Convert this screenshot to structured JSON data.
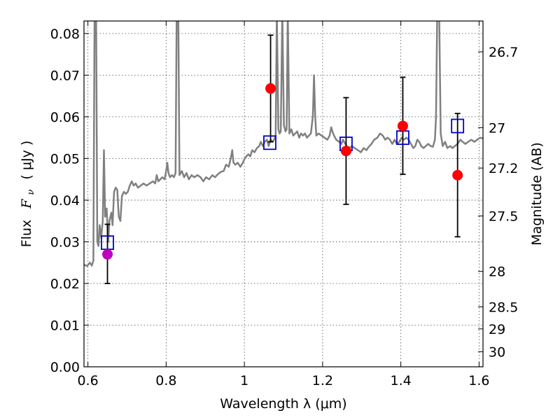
{
  "chart_data": {
    "type": "scatter",
    "xlabel": "Wavelength  λ (μm)",
    "ylabel_left_text": "Flux",
    "ylabel_left_math": "F",
    "ylabel_left_sub": "ν",
    "ylabel_left_unit": "( μJy )",
    "ylabel_right": "Magnitude (AB)",
    "xlim": [
      0.59,
      1.61
    ],
    "ylim": [
      0.0,
      0.083
    ],
    "grid": true,
    "x_ticks": [
      {
        "value": 0.6,
        "label": "0.6"
      },
      {
        "value": 0.8,
        "label": "0.8"
      },
      {
        "value": 1.0,
        "label": "1"
      },
      {
        "value": 1.2,
        "label": "1.2"
      },
      {
        "value": 1.4,
        "label": "1.4"
      },
      {
        "value": 1.6,
        "label": "1.6"
      }
    ],
    "y_ticks": [
      {
        "value": 0.0,
        "label": "0.00"
      },
      {
        "value": 0.01,
        "label": "0.01"
      },
      {
        "value": 0.02,
        "label": "0.02"
      },
      {
        "value": 0.03,
        "label": "0.03"
      },
      {
        "value": 0.04,
        "label": "0.04"
      },
      {
        "value": 0.05,
        "label": "0.05"
      },
      {
        "value": 0.06,
        "label": "0.06"
      },
      {
        "value": 0.07,
        "label": "0.07"
      },
      {
        "value": 0.08,
        "label": "0.08"
      }
    ],
    "right_ticks": [
      {
        "label": "26.7",
        "flux": 0.0756
      },
      {
        "label": "27",
        "flux": 0.0574
      },
      {
        "label": "27.2",
        "flux": 0.0477
      },
      {
        "label": "27.5",
        "flux": 0.0362
      },
      {
        "label": "28",
        "flux": 0.0229
      },
      {
        "label": "28.5",
        "flux": 0.0144
      },
      {
        "label": "29",
        "flux": 0.0091
      },
      {
        "label": "30",
        "flux": 0.0036
      }
    ],
    "colors": {
      "model": "#808080",
      "observed": "#ff0000",
      "observed_optical": "#bf00bf",
      "model_box": "#0000cc",
      "errorbar": "#000000"
    },
    "model_spectrum": [
      [
        0.59,
        0.0245
      ],
      [
        0.598,
        0.0242
      ],
      [
        0.605,
        0.025
      ],
      [
        0.61,
        0.0243
      ],
      [
        0.614,
        0.0255
      ],
      [
        0.617,
        0.085
      ],
      [
        0.621,
        0.085
      ],
      [
        0.624,
        0.03
      ],
      [
        0.627,
        0.029
      ],
      [
        0.63,
        0.034
      ],
      [
        0.634,
        0.031
      ],
      [
        0.638,
        0.035
      ],
      [
        0.641,
        0.052
      ],
      [
        0.644,
        0.036
      ],
      [
        0.648,
        0.038
      ],
      [
        0.652,
        0.03
      ],
      [
        0.655,
        0.035
      ],
      [
        0.66,
        0.037
      ],
      [
        0.663,
        0.034
      ],
      [
        0.667,
        0.042
      ],
      [
        0.671,
        0.043
      ],
      [
        0.675,
        0.0425
      ],
      [
        0.679,
        0.036
      ],
      [
        0.683,
        0.035
      ],
      [
        0.687,
        0.041
      ],
      [
        0.692,
        0.042
      ],
      [
        0.697,
        0.0415
      ],
      [
        0.702,
        0.042
      ],
      [
        0.707,
        0.0435
      ],
      [
        0.712,
        0.0445
      ],
      [
        0.717,
        0.0435
      ],
      [
        0.722,
        0.044
      ],
      [
        0.728,
        0.043
      ],
      [
        0.735,
        0.0435
      ],
      [
        0.742,
        0.044
      ],
      [
        0.75,
        0.0435
      ],
      [
        0.758,
        0.044
      ],
      [
        0.766,
        0.0445
      ],
      [
        0.772,
        0.044
      ],
      [
        0.776,
        0.046
      ],
      [
        0.78,
        0.0445
      ],
      [
        0.785,
        0.045
      ],
      [
        0.79,
        0.0455
      ],
      [
        0.796,
        0.045
      ],
      [
        0.8,
        0.047
      ],
      [
        0.803,
        0.049
      ],
      [
        0.806,
        0.0465
      ],
      [
        0.81,
        0.0455
      ],
      [
        0.815,
        0.046
      ],
      [
        0.82,
        0.0455
      ],
      [
        0.824,
        0.0465
      ],
      [
        0.827,
        0.085
      ],
      [
        0.831,
        0.085
      ],
      [
        0.834,
        0.046
      ],
      [
        0.84,
        0.047
      ],
      [
        0.846,
        0.0455
      ],
      [
        0.852,
        0.0465
      ],
      [
        0.858,
        0.045
      ],
      [
        0.865,
        0.046
      ],
      [
        0.872,
        0.0455
      ],
      [
        0.88,
        0.046
      ],
      [
        0.888,
        0.0455
      ],
      [
        0.895,
        0.0445
      ],
      [
        0.902,
        0.0455
      ],
      [
        0.91,
        0.045
      ],
      [
        0.918,
        0.046
      ],
      [
        0.925,
        0.0455
      ],
      [
        0.932,
        0.0462
      ],
      [
        0.94,
        0.0468
      ],
      [
        0.947,
        0.047
      ],
      [
        0.953,
        0.0485
      ],
      [
        0.96,
        0.048
      ],
      [
        0.965,
        0.05
      ],
      [
        0.969,
        0.052
      ],
      [
        0.972,
        0.049
      ],
      [
        0.977,
        0.0485
      ],
      [
        0.983,
        0.049
      ],
      [
        0.99,
        0.048
      ],
      [
        0.996,
        0.049
      ],
      [
        1.0,
        0.0498
      ],
      [
        1.005,
        0.0505
      ],
      [
        1.01,
        0.051
      ],
      [
        1.015,
        0.0505
      ],
      [
        1.02,
        0.052
      ],
      [
        1.026,
        0.0515
      ],
      [
        1.032,
        0.0525
      ],
      [
        1.038,
        0.053
      ],
      [
        1.042,
        0.054
      ],
      [
        1.047,
        0.053
      ],
      [
        1.052,
        0.054
      ],
      [
        1.058,
        0.0545
      ],
      [
        1.062,
        0.053
      ],
      [
        1.067,
        0.0545
      ],
      [
        1.072,
        0.054
      ],
      [
        1.076,
        0.0545
      ],
      [
        1.08,
        0.0555
      ],
      [
        1.083,
        0.085
      ],
      [
        1.087,
        0.057
      ],
      [
        1.09,
        0.056
      ],
      [
        1.093,
        0.0565
      ],
      [
        1.097,
        0.085
      ],
      [
        1.101,
        0.058
      ],
      [
        1.105,
        0.0565
      ],
      [
        1.108,
        0.057
      ],
      [
        1.111,
        0.085
      ],
      [
        1.115,
        0.056
      ],
      [
        1.12,
        0.057
      ],
      [
        1.125,
        0.0555
      ],
      [
        1.13,
        0.056
      ],
      [
        1.135,
        0.0565
      ],
      [
        1.14,
        0.055
      ],
      [
        1.145,
        0.056
      ],
      [
        1.15,
        0.0555
      ],
      [
        1.155,
        0.056
      ],
      [
        1.16,
        0.055
      ],
      [
        1.165,
        0.0555
      ],
      [
        1.17,
        0.056
      ],
      [
        1.175,
        0.06
      ],
      [
        1.178,
        0.07
      ],
      [
        1.181,
        0.06
      ],
      [
        1.184,
        0.0555
      ],
      [
        1.19,
        0.056
      ],
      [
        1.197,
        0.0555
      ],
      [
        1.205,
        0.055
      ],
      [
        1.212,
        0.0545
      ],
      [
        1.218,
        0.0555
      ],
      [
        1.222,
        0.0575
      ],
      [
        1.225,
        0.0565
      ],
      [
        1.229,
        0.0555
      ],
      [
        1.235,
        0.0545
      ],
      [
        1.242,
        0.054
      ],
      [
        1.248,
        0.0535
      ],
      [
        1.252,
        0.0545
      ],
      [
        1.258,
        0.0535
      ],
      [
        1.262,
        0.053
      ],
      [
        1.268,
        0.0525
      ],
      [
        1.275,
        0.053
      ],
      [
        1.282,
        0.0525
      ],
      [
        1.29,
        0.052
      ],
      [
        1.298,
        0.0515
      ],
      [
        1.305,
        0.0525
      ],
      [
        1.312,
        0.052
      ],
      [
        1.318,
        0.0528
      ],
      [
        1.325,
        0.0535
      ],
      [
        1.332,
        0.0545
      ],
      [
        1.34,
        0.055
      ],
      [
        1.347,
        0.056
      ],
      [
        1.354,
        0.0555
      ],
      [
        1.36,
        0.0545
      ],
      [
        1.366,
        0.055
      ],
      [
        1.372,
        0.0545
      ],
      [
        1.378,
        0.0535
      ],
      [
        1.384,
        0.0545
      ],
      [
        1.39,
        0.0535
      ],
      [
        1.396,
        0.054
      ],
      [
        1.402,
        0.055
      ],
      [
        1.408,
        0.0545
      ],
      [
        1.414,
        0.055
      ],
      [
        1.42,
        0.0545
      ],
      [
        1.426,
        0.0535
      ],
      [
        1.432,
        0.0525
      ],
      [
        1.437,
        0.053
      ],
      [
        1.442,
        0.0545
      ],
      [
        1.447,
        0.054
      ],
      [
        1.452,
        0.053
      ],
      [
        1.458,
        0.0525
      ],
      [
        1.464,
        0.053
      ],
      [
        1.47,
        0.0535
      ],
      [
        1.476,
        0.053
      ],
      [
        1.482,
        0.0528
      ],
      [
        1.487,
        0.0545
      ],
      [
        1.49,
        0.06
      ],
      [
        1.493,
        0.085
      ],
      [
        1.498,
        0.085
      ],
      [
        1.502,
        0.056
      ],
      [
        1.507,
        0.053
      ],
      [
        1.513,
        0.054
      ],
      [
        1.519,
        0.0525
      ],
      [
        1.526,
        0.053
      ],
      [
        1.532,
        0.0525
      ],
      [
        1.538,
        0.053
      ],
      [
        1.545,
        0.0535
      ],
      [
        1.552,
        0.0545
      ],
      [
        1.558,
        0.054
      ],
      [
        1.565,
        0.0535
      ],
      [
        1.572,
        0.054
      ],
      [
        1.58,
        0.0545
      ],
      [
        1.588,
        0.054
      ],
      [
        1.595,
        0.0545
      ],
      [
        1.602,
        0.055
      ],
      [
        1.61,
        0.0548
      ]
    ],
    "model_photometry": [
      {
        "x": 0.65,
        "y": 0.0298
      },
      {
        "x": 1.065,
        "y": 0.0538
      },
      {
        "x": 1.26,
        "y": 0.0535
      },
      {
        "x": 1.405,
        "y": 0.055
      },
      {
        "x": 1.545,
        "y": 0.0578
      }
    ],
    "observed_photometry": [
      {
        "x": 0.65,
        "y": 0.027,
        "err_low": 0.02,
        "err_high": 0.0342,
        "color": "observed_optical"
      },
      {
        "x": 1.067,
        "y": 0.0668,
        "err_low": 0.054,
        "err_high": 0.0796,
        "color": "observed"
      },
      {
        "x": 1.26,
        "y": 0.0518,
        "err_low": 0.039,
        "err_high": 0.0646,
        "color": "observed"
      },
      {
        "x": 1.405,
        "y": 0.0578,
        "err_low": 0.0462,
        "err_high": 0.0695,
        "color": "observed"
      },
      {
        "x": 1.545,
        "y": 0.046,
        "err_low": 0.0312,
        "err_high": 0.0608,
        "color": "observed"
      }
    ]
  }
}
